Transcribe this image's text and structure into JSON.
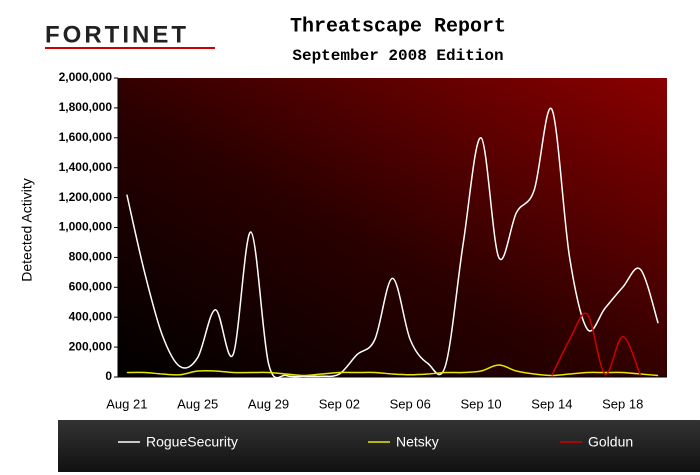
{
  "logo": "FORTINET",
  "chart_data": {
    "type": "line",
    "title": "Threatscape Report",
    "subtitle": "September 2008 Edition",
    "y_label": "Detected Activity",
    "categories": [
      "Aug 21",
      null,
      null,
      null,
      "Aug 25",
      null,
      null,
      null,
      "Aug 29",
      null,
      null,
      null,
      "Sep 02",
      null,
      null,
      null,
      "Sep 06",
      null,
      null,
      null,
      "Sep 10",
      null,
      null,
      null,
      "Sep 14",
      null,
      null,
      null,
      "Sep 18",
      null,
      null
    ],
    "series": [
      {
        "name": "RogueSecurity",
        "color": "#ffffff",
        "values": [
          1220000,
          700000,
          280000,
          70000,
          130000,
          450000,
          150000,
          970000,
          90000,
          10000,
          5000,
          5000,
          20000,
          150000,
          250000,
          660000,
          250000,
          90000,
          80000,
          900000,
          1600000,
          800000,
          1100000,
          1250000,
          1790000,
          800000,
          320000,
          460000,
          600000,
          720000,
          360000
        ]
      },
      {
        "name": "Netsky",
        "color": "#e6e600",
        "values": [
          30000,
          30000,
          20000,
          15000,
          40000,
          40000,
          30000,
          30000,
          30000,
          20000,
          10000,
          20000,
          30000,
          30000,
          30000,
          20000,
          15000,
          20000,
          30000,
          30000,
          40000,
          80000,
          40000,
          20000,
          10000,
          20000,
          30000,
          30000,
          30000,
          20000,
          10000
        ]
      },
      {
        "name": "Goldun",
        "color": "#cc0000",
        "values": [
          null,
          null,
          null,
          null,
          null,
          null,
          null,
          null,
          null,
          null,
          null,
          null,
          null,
          null,
          null,
          null,
          null,
          null,
          null,
          null,
          null,
          null,
          null,
          null,
          10000,
          250000,
          420000,
          20000,
          270000,
          10000,
          null
        ]
      }
    ],
    "ylim": [
      0,
      2000000
    ],
    "yticks": [
      0,
      {
        "value": 200000,
        "label": "200,000"
      },
      {
        "value": 400000,
        "label": "400,000"
      },
      {
        "value": 600000,
        "label": "600,000"
      },
      {
        "value": 800000,
        "label": "800,000"
      },
      {
        "value": 1000000,
        "label": "1,000,000"
      },
      {
        "value": 1200000,
        "label": "1,200,000"
      },
      {
        "value": 1400000,
        "label": "1,400,000"
      },
      {
        "value": 1600000,
        "label": "1,600,000"
      },
      {
        "value": 1800000,
        "label": "1,800,000"
      },
      {
        "value": 2000000,
        "label": "2,000,000"
      }
    ],
    "grid": false
  }
}
